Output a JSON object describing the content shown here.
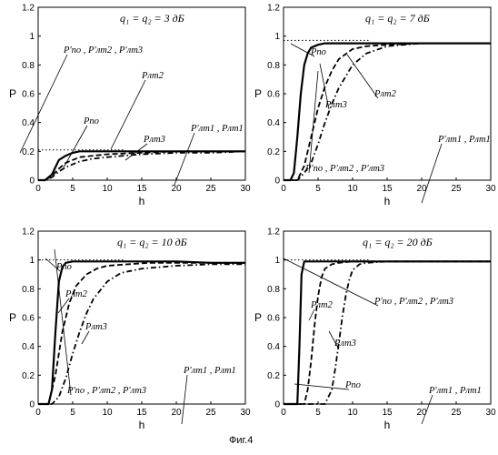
{
  "caption": "Фиг.4",
  "chart_data": [
    {
      "type": "line",
      "title": "q₁ = q₂ = 3   дБ",
      "xlabel": "h",
      "ylabel": "P",
      "xlim": [
        0,
        30
      ],
      "ylim": [
        0,
        1.2
      ],
      "xticks": [
        "0",
        "5",
        "10",
        "15",
        "20",
        "25",
        "30"
      ],
      "yticks": [
        "0",
        "0.2",
        "0.4",
        "0.6",
        "0.8",
        "1",
        "1.2"
      ],
      "asymptote": 0.21,
      "series": [
        {
          "style": "solid",
          "x": [
            0,
            1,
            2,
            3,
            4,
            5,
            6,
            8,
            10,
            15,
            20,
            25,
            30
          ],
          "y": [
            0,
            0,
            0.04,
            0.14,
            0.17,
            0.19,
            0.2,
            0.2,
            0.2,
            0.2,
            0.2,
            0.2,
            0.2
          ]
        },
        {
          "style": "dash",
          "x": [
            0,
            1,
            2,
            3,
            4,
            5,
            6,
            8,
            10,
            15,
            20,
            25,
            30
          ],
          "y": [
            0,
            0,
            0.03,
            0.08,
            0.12,
            0.14,
            0.16,
            0.17,
            0.18,
            0.19,
            0.2,
            0.2,
            0.2
          ]
        },
        {
          "style": "dashdot",
          "x": [
            0,
            1,
            2,
            3,
            4,
            5,
            6,
            8,
            10,
            15,
            20,
            25,
            30
          ],
          "y": [
            0,
            0,
            0.02,
            0.06,
            0.09,
            0.11,
            0.13,
            0.15,
            0.16,
            0.18,
            0.19,
            0.19,
            0.2
          ]
        }
      ],
      "annotations": [
        {
          "text": "P'по , P'лт2 , P'лт3"
        },
        {
          "text": "Pлт2"
        },
        {
          "text": "Pпо"
        },
        {
          "text": "Pлт3"
        },
        {
          "text": "P'лт1 , Pлт1"
        }
      ]
    },
    {
      "type": "line",
      "title": "q₁ = q₂ =  7 дБ",
      "xlabel": "h",
      "ylabel": "P",
      "xlim": [
        0,
        30
      ],
      "ylim": [
        0,
        1.2
      ],
      "xticks": [
        "0",
        "5",
        "10",
        "15",
        "20",
        "25",
        "30"
      ],
      "yticks": [
        "0",
        "0.2",
        "0.4",
        "0.6",
        "0.8",
        "1",
        "1.2"
      ],
      "asymptote": 0.97,
      "series": [
        {
          "style": "solid",
          "x": [
            0,
            1,
            1.5,
            2,
            2.5,
            3,
            3.5,
            4,
            5,
            6,
            8,
            10,
            15,
            20,
            25,
            30
          ],
          "y": [
            0,
            0,
            0.05,
            0.3,
            0.6,
            0.8,
            0.88,
            0.92,
            0.94,
            0.95,
            0.95,
            0.95,
            0.95,
            0.95,
            0.95,
            0.95
          ]
        },
        {
          "style": "dash",
          "x": [
            0,
            2,
            3,
            4,
            5,
            6,
            7,
            8,
            10,
            12,
            15,
            20,
            25,
            30
          ],
          "y": [
            0,
            0,
            0.1,
            0.3,
            0.5,
            0.65,
            0.76,
            0.84,
            0.91,
            0.93,
            0.94,
            0.95,
            0.95,
            0.95
          ]
        },
        {
          "style": "dashdot",
          "x": [
            0,
            2,
            3,
            4,
            5,
            6,
            7,
            8,
            10,
            12,
            15,
            20,
            25,
            30
          ],
          "y": [
            0,
            0,
            0.05,
            0.12,
            0.25,
            0.4,
            0.53,
            0.64,
            0.8,
            0.88,
            0.93,
            0.95,
            0.95,
            0.95
          ]
        }
      ],
      "annotations": [
        {
          "text": "Pпо"
        },
        {
          "text": "Pлт2"
        },
        {
          "text": "Pлт3"
        },
        {
          "text": "P'по , P'лт2 , P'лт3"
        },
        {
          "text": "P'лт1 , Pлт1"
        }
      ]
    },
    {
      "type": "line",
      "title": "q₁ = q₂ = 10 дБ",
      "xlabel": "h",
      "ylabel": "P",
      "xlim": [
        0,
        30
      ],
      "ylim": [
        0,
        1.2
      ],
      "xticks": [
        "0",
        "5",
        "10",
        "15",
        "20",
        "25",
        "30"
      ],
      "yticks": [
        "0",
        "0.2",
        "0.4",
        "0.6",
        "0.8",
        "1",
        "1.2"
      ],
      "asymptote": 1.0,
      "series": [
        {
          "style": "solid",
          "x": [
            0,
            1.5,
            2,
            2.5,
            3,
            3.5,
            4,
            5,
            6,
            10,
            15,
            20,
            25,
            30
          ],
          "y": [
            0,
            0,
            0.1,
            0.5,
            0.85,
            0.95,
            0.98,
            0.99,
            0.99,
            0.99,
            0.99,
            0.99,
            0.98,
            0.98
          ]
        },
        {
          "style": "dash",
          "x": [
            0,
            1.5,
            2.5,
            3.5,
            4.5,
            5.5,
            7,
            8.5,
            10,
            13,
            16,
            20,
            25,
            30
          ],
          "y": [
            0,
            0,
            0.2,
            0.5,
            0.7,
            0.82,
            0.9,
            0.94,
            0.96,
            0.97,
            0.98,
            0.98,
            0.98,
            0.98
          ]
        },
        {
          "style": "dashdot",
          "x": [
            0,
            2,
            3,
            4,
            5,
            6,
            7,
            8,
            10,
            12,
            15,
            20,
            25,
            30
          ],
          "y": [
            0,
            0,
            0.05,
            0.18,
            0.35,
            0.5,
            0.63,
            0.73,
            0.85,
            0.91,
            0.94,
            0.96,
            0.97,
            0.97
          ]
        }
      ],
      "annotations": [
        {
          "text": "Pпо"
        },
        {
          "text": "Pлт2"
        },
        {
          "text": "Pлт3"
        },
        {
          "text": "P'по , P'лт2 , P'лт3"
        },
        {
          "text": "P'лт1 , Pлт1"
        }
      ]
    },
    {
      "type": "line",
      "title": "q₁ = q₂ = 20 дБ",
      "xlabel": "h",
      "ylabel": "P",
      "xlim": [
        0,
        30
      ],
      "ylim": [
        0,
        1.2
      ],
      "xticks": [
        "0",
        "5",
        "10",
        "15",
        "20",
        "25",
        "30"
      ],
      "yticks": [
        "0",
        "0.2",
        "0.4",
        "0.6",
        "0.8",
        "1",
        "1.2"
      ],
      "asymptote": 1.0,
      "series": [
        {
          "style": "solid",
          "x": [
            0,
            2,
            2.3,
            2.6,
            3,
            4,
            6,
            10,
            15,
            20,
            25,
            30
          ],
          "y": [
            0,
            0,
            0.4,
            0.9,
            0.99,
            0.99,
            0.99,
            0.99,
            0.99,
            0.99,
            0.99,
            0.99
          ]
        },
        {
          "style": "dash",
          "x": [
            0,
            3,
            3.5,
            4,
            4.5,
            5,
            5.5,
            6,
            7,
            8,
            10,
            15,
            20,
            25,
            30
          ],
          "y": [
            0,
            0,
            0.1,
            0.3,
            0.55,
            0.75,
            0.88,
            0.94,
            0.97,
            0.98,
            0.99,
            0.99,
            0.99,
            0.99,
            0.99
          ]
        },
        {
          "style": "dashdot",
          "x": [
            0,
            6,
            7,
            7.5,
            8,
            8.5,
            9,
            9.5,
            10,
            11,
            12,
            15,
            20,
            25,
            30
          ],
          "y": [
            0,
            0,
            0.1,
            0.25,
            0.42,
            0.6,
            0.75,
            0.86,
            0.93,
            0.97,
            0.98,
            0.99,
            0.99,
            0.99,
            0.99
          ]
        }
      ],
      "annotations": [
        {
          "text": "P'по , P'лт2 , P'лт3"
        },
        {
          "text": "Pлт2"
        },
        {
          "text": "Pлт3"
        },
        {
          "text": "Pпо"
        },
        {
          "text": "P'лт1 , Pлт1"
        }
      ]
    }
  ]
}
